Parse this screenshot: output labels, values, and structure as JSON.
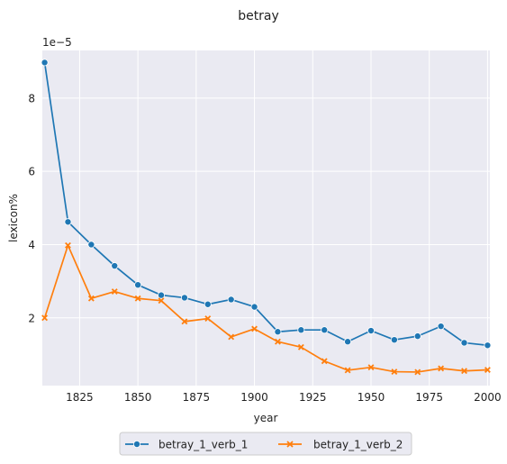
{
  "chart_data": {
    "type": "line",
    "title": "betray",
    "xlabel": "year",
    "ylabel": "lexicon%",
    "y_scale_label": "1e−5",
    "x": [
      1810,
      1820,
      1830,
      1840,
      1850,
      1860,
      1870,
      1880,
      1890,
      1900,
      1910,
      1920,
      1930,
      1940,
      1950,
      1960,
      1970,
      1980,
      1990,
      2000
    ],
    "xlim": [
      1809,
      2001
    ],
    "ylim": [
      0.15,
      9.3
    ],
    "x_ticks": [
      1825,
      1850,
      1875,
      1900,
      1925,
      1950,
      1975,
      2000
    ],
    "y_ticks": [
      2,
      4,
      6,
      8
    ],
    "grid": true,
    "legend_position": "bottom-center",
    "series": [
      {
        "name": "betray_1_verb_1",
        "color": "#1f77b4",
        "marker": "circle",
        "values": [
          8.97,
          4.62,
          4.0,
          3.42,
          2.9,
          2.62,
          2.55,
          2.37,
          2.5,
          2.3,
          1.62,
          1.67,
          1.67,
          1.35,
          1.65,
          1.4,
          1.5,
          1.77,
          1.32,
          1.25
        ]
      },
      {
        "name": "betray_1_verb_2",
        "color": "#ff7f0e",
        "marker": "x",
        "values": [
          2.0,
          3.98,
          2.53,
          2.72,
          2.53,
          2.47,
          1.9,
          1.98,
          1.48,
          1.7,
          1.35,
          1.2,
          0.82,
          0.57,
          0.65,
          0.53,
          0.52,
          0.62,
          0.55,
          0.58
        ]
      }
    ]
  }
}
